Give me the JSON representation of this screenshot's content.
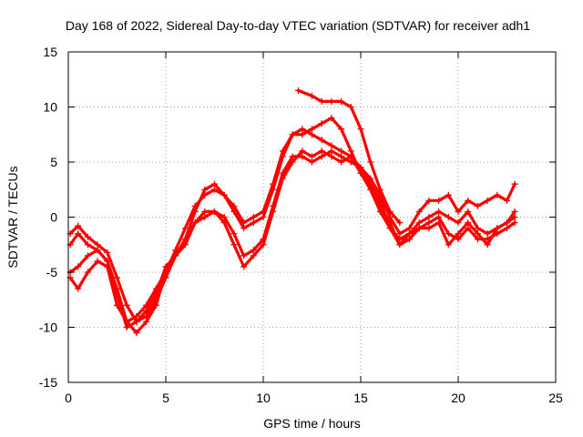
{
  "chart_data": {
    "type": "line",
    "title": "Day 168 of 2022, Sidereal Day-to-day VTEC variation (SDTVAR) for receiver adh1",
    "xlabel": "GPS time / hours",
    "ylabel": "SDTVAR / TECUs",
    "xlim": [
      0,
      25
    ],
    "ylim": [
      -15,
      15
    ],
    "x_ticks": [
      0,
      5,
      10,
      15,
      20,
      25
    ],
    "y_ticks": [
      -15,
      -10,
      -5,
      0,
      5,
      10,
      15
    ],
    "x_tick_labels": [
      "0",
      "5",
      "10",
      "15",
      "20",
      "25"
    ],
    "y_tick_labels": [
      "-15",
      "-10",
      "-5",
      "0",
      "5",
      "10",
      "15"
    ],
    "grid": true,
    "legend": "none",
    "marker": "+",
    "color": "#ff0000",
    "series": [
      {
        "name": "day-1",
        "points": [
          [
            0.1,
            -1.5
          ],
          [
            0.5,
            -0.8
          ],
          [
            1.0,
            -1.8
          ],
          [
            1.5,
            -2.5
          ],
          [
            2.0,
            -3.2
          ],
          [
            2.5,
            -5.5
          ],
          [
            3.0,
            -8.0
          ],
          [
            3.5,
            -9.5
          ],
          [
            4.0,
            -9.0
          ],
          [
            4.5,
            -7.5
          ],
          [
            5.0,
            -5.5
          ],
          [
            5.5,
            -3.5
          ],
          [
            6.0,
            -2.0
          ],
          [
            6.5,
            0.5
          ],
          [
            7.0,
            2.5
          ],
          [
            7.5,
            3.0
          ],
          [
            8.0,
            2.0
          ],
          [
            8.5,
            0.5
          ],
          [
            9.0,
            -1.0
          ],
          [
            9.5,
            -0.5
          ],
          [
            10.0,
            0.0
          ],
          [
            10.5,
            2.5
          ],
          [
            11.0,
            5.5
          ],
          [
            11.5,
            7.5
          ],
          [
            12.0,
            8.0
          ],
          [
            12.5,
            7.5
          ],
          [
            13.0,
            7.0
          ],
          [
            13.5,
            6.5
          ],
          [
            14.0,
            6.0
          ],
          [
            14.5,
            5.5
          ],
          [
            15.0,
            4.5
          ],
          [
            15.5,
            3.5
          ],
          [
            16.0,
            2.0
          ],
          [
            16.5,
            0.0
          ],
          [
            17.0,
            -1.5
          ],
          [
            17.5,
            -1.0
          ],
          [
            18.0,
            0.5
          ],
          [
            18.5,
            1.5
          ],
          [
            19.0,
            1.5
          ],
          [
            19.5,
            2.0
          ],
          [
            20.0,
            0.5
          ],
          [
            20.5,
            1.5
          ],
          [
            21.0,
            1.0
          ],
          [
            21.5,
            1.5
          ],
          [
            22.0,
            2.0
          ],
          [
            22.5,
            1.5
          ],
          [
            22.9,
            3.0
          ]
        ]
      },
      {
        "name": "day-2",
        "points": [
          [
            0.1,
            -2.5
          ],
          [
            0.5,
            -1.5
          ],
          [
            1.0,
            -2.5
          ],
          [
            1.5,
            -3.0
          ],
          [
            2.0,
            -4.0
          ],
          [
            2.5,
            -6.5
          ],
          [
            3.0,
            -9.5
          ],
          [
            3.5,
            -10.5
          ],
          [
            4.0,
            -9.5
          ],
          [
            4.5,
            -8.0
          ],
          [
            5.0,
            -5.0
          ],
          [
            5.5,
            -3.0
          ],
          [
            6.0,
            -1.0
          ],
          [
            6.5,
            1.0
          ],
          [
            7.0,
            2.0
          ],
          [
            7.5,
            2.5
          ],
          [
            8.0,
            2.0
          ],
          [
            8.5,
            1.0
          ],
          [
            9.0,
            -0.5
          ],
          [
            9.5,
            0.0
          ],
          [
            10.0,
            0.5
          ],
          [
            10.5,
            3.0
          ],
          [
            11.0,
            6.0
          ],
          [
            11.5,
            7.5
          ],
          [
            12.0,
            7.5
          ],
          [
            12.5,
            8.0
          ],
          [
            13.0,
            8.5
          ],
          [
            13.5,
            9.0
          ],
          [
            14.0,
            8.0
          ],
          [
            14.5,
            6.0
          ],
          [
            15.0,
            4.0
          ],
          [
            15.5,
            2.5
          ],
          [
            16.0,
            0.5
          ],
          [
            16.5,
            -1.0
          ],
          [
            17.0,
            -2.0
          ],
          [
            17.5,
            -1.5
          ],
          [
            18.0,
            -0.5
          ],
          [
            18.5,
            0.0
          ],
          [
            19.0,
            0.5
          ],
          [
            19.5,
            0.0
          ],
          [
            20.0,
            -0.5
          ],
          [
            20.5,
            0.5
          ],
          [
            21.0,
            -1.0
          ],
          [
            21.5,
            -1.5
          ],
          [
            22.0,
            -1.0
          ],
          [
            22.5,
            -0.5
          ],
          [
            22.9,
            0.5
          ]
        ]
      },
      {
        "name": "day-3",
        "points": [
          [
            0.1,
            -5.0
          ],
          [
            0.5,
            -4.5
          ],
          [
            1.0,
            -3.5
          ],
          [
            1.5,
            -3.0
          ],
          [
            2.0,
            -4.0
          ],
          [
            2.5,
            -7.0
          ],
          [
            3.0,
            -10.0
          ],
          [
            3.5,
            -9.5
          ],
          [
            4.0,
            -8.5
          ],
          [
            4.5,
            -7.0
          ],
          [
            5.0,
            -4.5
          ],
          [
            5.5,
            -3.5
          ],
          [
            6.0,
            -2.0
          ],
          [
            6.5,
            -0.5
          ],
          [
            7.0,
            0.0
          ],
          [
            7.5,
            0.5
          ],
          [
            8.0,
            0.0
          ],
          [
            8.5,
            -1.5
          ],
          [
            9.0,
            -3.5
          ],
          [
            9.5,
            -3.0
          ],
          [
            10.0,
            -2.0
          ],
          [
            10.5,
            1.0
          ],
          [
            11.0,
            4.0
          ],
          [
            11.5,
            5.5
          ],
          [
            12.0,
            5.5
          ],
          [
            12.5,
            5.0
          ],
          [
            13.0,
            5.5
          ],
          [
            13.5,
            6.0
          ],
          [
            14.0,
            5.5
          ],
          [
            14.5,
            5.0
          ],
          [
            15.0,
            4.5
          ],
          [
            15.5,
            3.0
          ],
          [
            16.0,
            1.0
          ],
          [
            16.5,
            -0.5
          ],
          [
            17.0,
            -2.5
          ],
          [
            17.5,
            -1.5
          ],
          [
            18.0,
            -1.0
          ],
          [
            18.5,
            -0.5
          ],
          [
            19.0,
            0.0
          ],
          [
            19.5,
            -1.5
          ],
          [
            20.0,
            -2.0
          ],
          [
            20.5,
            -1.0
          ],
          [
            21.0,
            -2.0
          ],
          [
            21.5,
            -2.0
          ],
          [
            22.0,
            -1.5
          ],
          [
            22.5,
            -1.0
          ],
          [
            22.9,
            -0.5
          ]
        ]
      },
      {
        "name": "day-4",
        "points": [
          [
            0.1,
            -5.5
          ],
          [
            0.5,
            -6.5
          ],
          [
            1.0,
            -5.0
          ],
          [
            1.5,
            -4.0
          ],
          [
            2.0,
            -4.5
          ],
          [
            2.5,
            -8.0
          ],
          [
            3.0,
            -9.5
          ],
          [
            3.5,
            -9.0
          ],
          [
            4.0,
            -8.0
          ],
          [
            4.5,
            -6.5
          ],
          [
            5.0,
            -5.0
          ],
          [
            5.5,
            -3.5
          ],
          [
            6.0,
            -2.5
          ],
          [
            6.5,
            -0.5
          ],
          [
            7.0,
            0.5
          ],
          [
            7.5,
            0.5
          ],
          [
            8.0,
            -0.5
          ],
          [
            8.5,
            -2.5
          ],
          [
            9.0,
            -4.5
          ],
          [
            9.5,
            -3.5
          ],
          [
            10.0,
            -2.5
          ],
          [
            10.5,
            0.5
          ],
          [
            11.0,
            3.5
          ],
          [
            11.5,
            5.0
          ],
          [
            12.0,
            6.0
          ],
          [
            12.5,
            5.5
          ],
          [
            13.0,
            6.0
          ],
          [
            13.5,
            5.5
          ],
          [
            14.0,
            5.0
          ],
          [
            14.5,
            5.5
          ],
          [
            15.0,
            4.0
          ],
          [
            15.5,
            3.0
          ],
          [
            16.0,
            1.5
          ],
          [
            16.5,
            -1.0
          ],
          [
            17.0,
            -2.5
          ],
          [
            17.5,
            -2.0
          ],
          [
            18.0,
            -1.0
          ],
          [
            18.5,
            -1.0
          ],
          [
            19.0,
            -0.5
          ],
          [
            19.5,
            -2.5
          ],
          [
            20.0,
            -1.5
          ],
          [
            20.5,
            -0.5
          ],
          [
            21.0,
            -1.5
          ],
          [
            21.5,
            -2.5
          ],
          [
            22.0,
            -1.0
          ],
          [
            22.5,
            -0.5
          ],
          [
            22.9,
            0.0
          ]
        ]
      },
      {
        "name": "day-5",
        "points": [
          [
            11.8,
            11.5
          ],
          [
            12.5,
            11.0
          ],
          [
            13.0,
            10.5
          ],
          [
            13.5,
            10.5
          ],
          [
            14.0,
            10.5
          ],
          [
            14.5,
            10.0
          ],
          [
            15.0,
            8.0
          ],
          [
            15.5,
            5.0
          ],
          [
            16.0,
            2.5
          ],
          [
            16.5,
            0.5
          ],
          [
            17.0,
            -0.5
          ]
        ]
      }
    ]
  }
}
